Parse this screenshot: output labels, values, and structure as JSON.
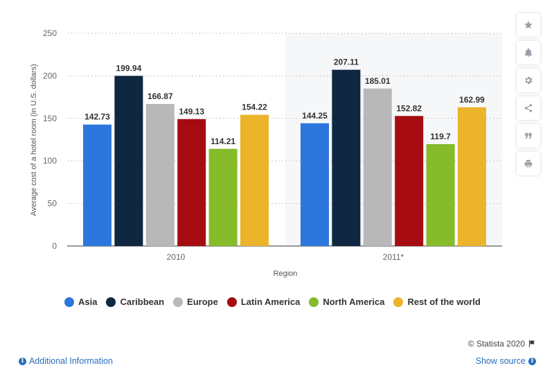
{
  "chart_data": {
    "type": "bar",
    "title": "",
    "xlabel": "Region",
    "ylabel": "Average cost of a hotel room (in U.S. dollars)",
    "ylim": [
      0,
      250
    ],
    "yticks": [
      0,
      50,
      100,
      150,
      200,
      250
    ],
    "grid": true,
    "legend_position": "bottom",
    "categories": [
      "2010",
      "2011*"
    ],
    "series": [
      {
        "name": "Asia",
        "color": "#2d76de",
        "values": [
          142.73,
          144.25
        ],
        "labels": [
          "142.73",
          "144.25"
        ]
      },
      {
        "name": "Caribbean",
        "color": "#0f2741",
        "values": [
          199.94,
          207.11
        ],
        "labels": [
          "199.94",
          "207.11"
        ]
      },
      {
        "name": "Europe",
        "color": "#b8b8b8",
        "values": [
          166.87,
          185.01
        ],
        "labels": [
          "166.87",
          "185.01"
        ]
      },
      {
        "name": "Latin America",
        "color": "#a60b12",
        "values": [
          149.13,
          152.82
        ],
        "labels": [
          "149.13",
          "152.82"
        ]
      },
      {
        "name": "North America",
        "color": "#86bb2a",
        "values": [
          114.21,
          119.7
        ],
        "labels": [
          "114.21",
          "119.7"
        ]
      },
      {
        "name": "Rest of the world",
        "color": "#ebb42a",
        "values": [
          154.22,
          162.99
        ],
        "labels": [
          "154.22",
          "162.99"
        ]
      }
    ]
  },
  "footer": {
    "credit": "© Statista 2020",
    "additional_info": "Additional Information",
    "show_source": "Show source"
  },
  "sidebar": {
    "icons": [
      "star-icon",
      "bell-icon",
      "gear-icon",
      "share-icon",
      "quote-icon",
      "print-icon"
    ]
  }
}
